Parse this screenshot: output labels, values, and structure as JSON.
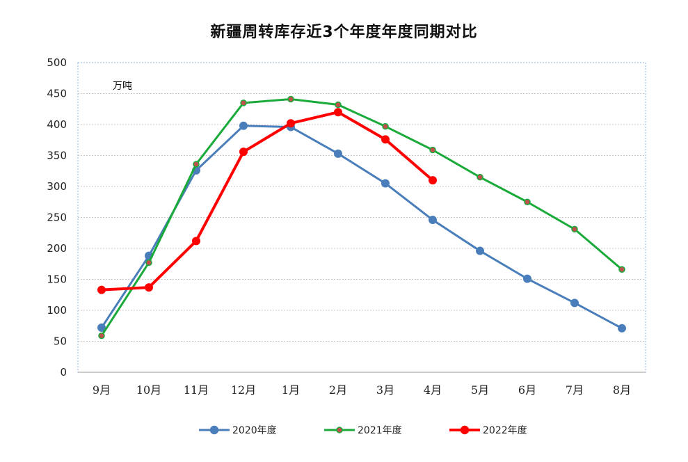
{
  "chart_data": {
    "type": "line",
    "title": "新疆周转库存近3个年度年度同期对比",
    "unit_label": "万吨",
    "xlabel": "",
    "ylabel": "",
    "ylim": [
      0,
      500
    ],
    "yticks": [
      0,
      50,
      100,
      150,
      200,
      250,
      300,
      350,
      400,
      450,
      500
    ],
    "grid": true,
    "legend_position": "bottom",
    "categories": [
      "9月",
      "10月",
      "11月",
      "12月",
      "1月",
      "2月",
      "3月",
      "4月",
      "5月",
      "6月",
      "7月",
      "8月"
    ],
    "series": [
      {
        "name": "2020年度",
        "color": "#4a7ebb",
        "marker_fill": "#4a7ebb",
        "values": [
          72,
          188,
          326,
          398,
          396,
          353,
          305,
          246,
          196,
          151,
          112,
          71
        ]
      },
      {
        "name": "2021年度",
        "color": "#1aaa3a",
        "marker_fill": "#c0504d",
        "values": [
          59,
          177,
          336,
          435,
          441,
          432,
          397,
          359,
          315,
          275,
          231,
          166
        ]
      },
      {
        "name": "2022年度",
        "color": "#ff0000",
        "marker_fill": "#ff0000",
        "values": [
          133,
          137,
          212,
          356,
          402,
          420,
          376,
          310,
          null,
          null,
          null,
          null
        ]
      }
    ]
  }
}
